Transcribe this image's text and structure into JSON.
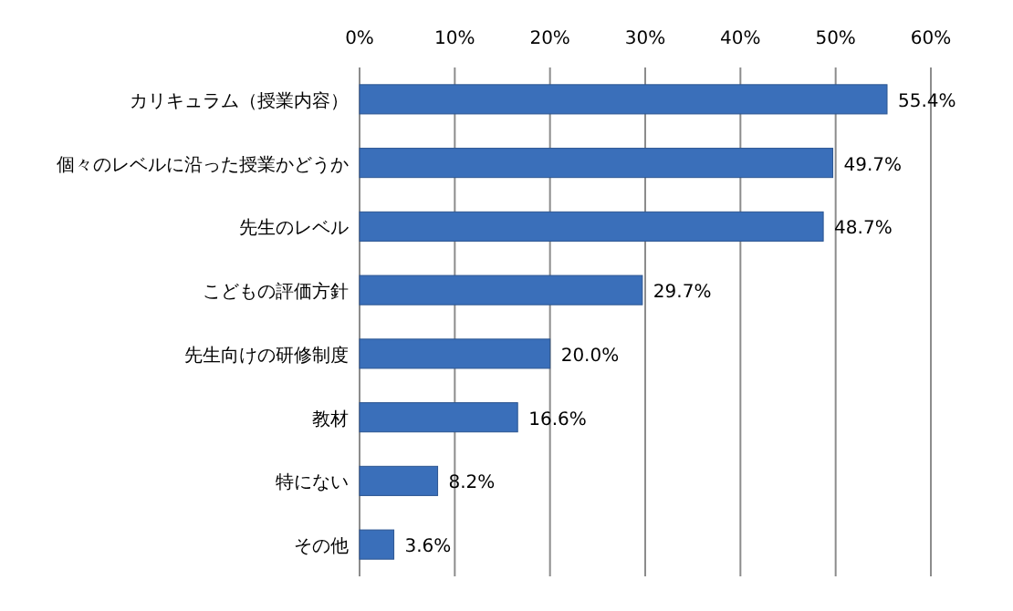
{
  "chart_data": {
    "type": "bar",
    "orientation": "horizontal",
    "categories": [
      "カリキュラム（授業内容）",
      "個々のレベルに沿った授業かどうか",
      "先生のレベル",
      "こどもの評価方針",
      "先生向けの研修制度",
      "教材",
      "特にない",
      "その他"
    ],
    "values": [
      55.4,
      49.7,
      48.7,
      29.7,
      20.0,
      16.6,
      8.2,
      3.6
    ],
    "value_labels": [
      "55.4%",
      "49.7%",
      "48.7%",
      "29.7%",
      "20.0%",
      "16.6%",
      "8.2%",
      "3.6%"
    ],
    "color": "#3a6fba",
    "xlim": [
      0,
      60
    ],
    "xticks": [
      {
        "value": 0,
        "label": "0%"
      },
      {
        "value": 10,
        "label": "10%"
      },
      {
        "value": 20,
        "label": "20%"
      },
      {
        "value": 30,
        "label": "30%"
      },
      {
        "value": 40,
        "label": "40%"
      },
      {
        "value": 50,
        "label": "50%"
      },
      {
        "value": 60,
        "label": "60%"
      }
    ],
    "grid": "x"
  }
}
